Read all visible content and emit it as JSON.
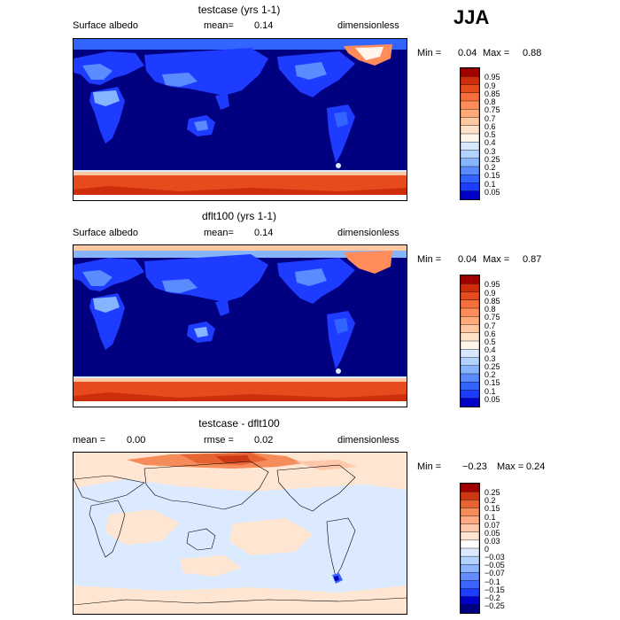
{
  "season": "JJA",
  "colors": {
    "abs_scale": [
      "#000080",
      "#0000c8",
      "#1e3cff",
      "#3264ff",
      "#5a8cff",
      "#87b4ff",
      "#b4d2ff",
      "#d7e8ff",
      "#fff5eb",
      "#ffe1c8",
      "#ffc8a0",
      "#ffaa78",
      "#ff8c5a",
      "#f56e3c",
      "#e64b1e",
      "#cd2d0a",
      "#a00000",
      "#780000"
    ],
    "diff_scale": [
      "#000080",
      "#0000c8",
      "#1e3cff",
      "#3c64ff",
      "#648cff",
      "#8cb4ff",
      "#b4d2ff",
      "#dceaff",
      "#ffffff",
      "#ffe6d2",
      "#ffc8aa",
      "#ffaa82",
      "#f58c5a",
      "#e66432",
      "#cd3714",
      "#a00000"
    ]
  },
  "panels": [
    {
      "title": "testcase (yrs 1-1)",
      "left_label": "Surface albedo",
      "mid_label": "mean=",
      "mid_value": "0.14",
      "right_label": "dimensionless",
      "min_label": "Min =",
      "min_value": "0.04",
      "max_label": "Max =",
      "max_value": "0.88",
      "ticks": [
        "0.95",
        "0.9",
        "0.85",
        "0.8",
        "0.75",
        "0.7",
        "0.6",
        "0.5",
        "0.4",
        "0.3",
        "0.25",
        "0.2",
        "0.15",
        "0.1",
        "0.05"
      ]
    },
    {
      "title": "dflt100 (yrs 1-1)",
      "left_label": "Surface albedo",
      "mid_label": "mean=",
      "mid_value": "0.14",
      "right_label": "dimensionless",
      "min_label": "Min =",
      "min_value": "0.04",
      "max_label": "Max =",
      "max_value": "0.87",
      "ticks": [
        "0.95",
        "0.9",
        "0.85",
        "0.8",
        "0.75",
        "0.7",
        "0.6",
        "0.5",
        "0.4",
        "0.3",
        "0.25",
        "0.2",
        "0.15",
        "0.1",
        "0.05"
      ]
    },
    {
      "title": "testcase - dflt100",
      "left_label": "mean =",
      "left_value": "0.00",
      "mid_label": "rmse =",
      "mid_value": "0.02",
      "right_label": "dimensionless",
      "min_label": "Min =",
      "min_value": "−0.23",
      "max_label": "Max =",
      "max_value": "0.24",
      "ticks": [
        "0.25",
        "0.2",
        "0.15",
        "0.1",
        "0.07",
        "0.05",
        "0.03",
        "0",
        "−0.03",
        "−0.05",
        "−0.07",
        "−0.1",
        "−0.15",
        "−0.2",
        "−0.25"
      ]
    }
  ],
  "chart_data": [
    {
      "type": "heatmap",
      "title": "testcase (yrs 1-1)",
      "variable": "Surface albedo",
      "units": "dimensionless",
      "season": "JJA",
      "mean": 0.14,
      "min": 0.04,
      "max": 0.88,
      "colorbar_levels": [
        0.05,
        0.1,
        0.15,
        0.2,
        0.25,
        0.3,
        0.4,
        0.5,
        0.6,
        0.7,
        0.75,
        0.8,
        0.85,
        0.9,
        0.95
      ]
    },
    {
      "type": "heatmap",
      "title": "dflt100 (yrs 1-1)",
      "variable": "Surface albedo",
      "units": "dimensionless",
      "season": "JJA",
      "mean": 0.14,
      "min": 0.04,
      "max": 0.87,
      "colorbar_levels": [
        0.05,
        0.1,
        0.15,
        0.2,
        0.25,
        0.3,
        0.4,
        0.5,
        0.6,
        0.7,
        0.75,
        0.8,
        0.85,
        0.9,
        0.95
      ]
    },
    {
      "type": "heatmap",
      "title": "testcase - dflt100",
      "units": "dimensionless",
      "season": "JJA",
      "mean": 0.0,
      "rmse": 0.02,
      "min": -0.23,
      "max": 0.24,
      "colorbar_levels": [
        -0.25,
        -0.2,
        -0.15,
        -0.1,
        -0.07,
        -0.05,
        -0.03,
        0,
        0.03,
        0.05,
        0.07,
        0.1,
        0.15,
        0.2,
        0.25
      ]
    }
  ]
}
